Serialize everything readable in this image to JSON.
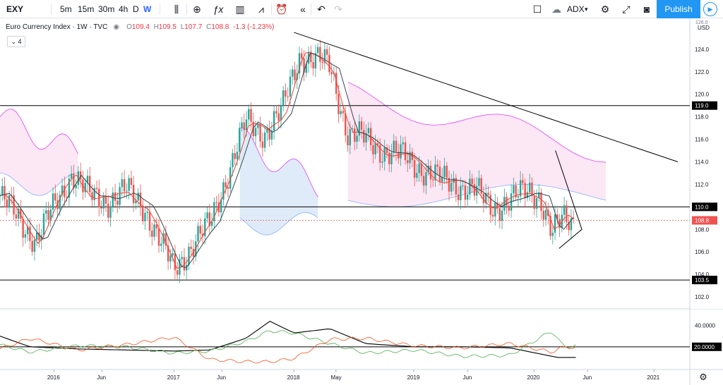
{
  "toolbar": {
    "symbol": "EXY",
    "intervals": [
      "5m",
      "15m",
      "30m",
      "4h",
      "D",
      "W"
    ],
    "active_interval": "W",
    "compare_label": "ADX",
    "publish_label": "Publish"
  },
  "legend": {
    "title": "Euro Currency Index · 1W · TVC",
    "open_label": "O",
    "open": "109.4",
    "high_label": "H",
    "high": "109.5",
    "low_label": "L",
    "low": "107.7",
    "close_label": "C",
    "close": "108.8",
    "change": "-1.3 (-1.23%)",
    "indicators_count": "4"
  },
  "price_axis": {
    "currency": "USD",
    "top_partial": "126.0",
    "ticks": [
      "124.0",
      "122.0",
      "120.0",
      "118.0",
      "116.0",
      "114.0",
      "112.0",
      "110.0",
      "108.0",
      "106.0",
      "104.0",
      "102.0"
    ],
    "bottom_partial": "104.0",
    "badges": [
      {
        "label": "119.0",
        "kind": "level"
      },
      {
        "label": "110.0",
        "kind": "level"
      },
      {
        "label": "108.8",
        "kind": "current"
      },
      {
        "label": "103.5",
        "kind": "level"
      }
    ]
  },
  "adx_axis": {
    "ticks": [
      "40.0000"
    ],
    "badge": "20.0000"
  },
  "time_axis": {
    "labels": [
      "2016",
      "Jun",
      "2017",
      "Jun",
      "2018",
      "May",
      "2019",
      "Jun",
      "2020",
      "Jun",
      "2021"
    ]
  },
  "colors": {
    "up": "#26a69a",
    "down": "#ef5350",
    "bullish_cloud": "#fce4f3",
    "bearish_cloud": "#dce9f7",
    "span_a": "#e040fb",
    "span_b": "#82b1ff",
    "tenkan": "#f44336",
    "kijun": "#37474f",
    "adx": "#000000",
    "plus_di": "#4caf50",
    "minus_di": "#f4511e",
    "accent": "#2196f3"
  },
  "chart_data": {
    "type": "candlestick",
    "title": "Euro Currency Index · 1W · TVC",
    "ylim": [
      101.0,
      126.5
    ],
    "horizontal_levels": [
      119.0,
      110.0,
      103.5
    ],
    "current_price": 108.8,
    "series": [
      {
        "name": "Price (weekly closes)",
        "t": [
          2015.55,
          2015.7,
          2015.85,
          2016.0,
          2016.15,
          2016.3,
          2016.45,
          2016.6,
          2016.75,
          2016.9,
          2017.0,
          2017.15,
          2017.3,
          2017.45,
          2017.6,
          2017.75,
          2017.9,
          2018.05,
          2018.2,
          2018.3,
          2018.45,
          2018.6,
          2018.75,
          2018.9,
          2019.05,
          2019.2,
          2019.35,
          2019.5,
          2019.65,
          2019.8,
          2019.95,
          2020.05,
          2020.15,
          2020.25,
          2020.32
        ],
        "values": [
          111.0,
          109.0,
          107.0,
          110.0,
          113.0,
          111.0,
          110.5,
          111.5,
          110.0,
          106.5,
          104.5,
          106.5,
          108.5,
          113.0,
          117.5,
          116.5,
          118.5,
          123.5,
          123.0,
          122.5,
          116.5,
          116.0,
          115.0,
          114.5,
          113.5,
          112.5,
          112.0,
          111.5,
          110.0,
          110.5,
          111.5,
          111.0,
          107.5,
          109.0,
          108.8
        ]
      }
    ],
    "ichimoku_cloud": [
      {
        "t0": 2015.55,
        "t1": 2016.2,
        "span_a": 118.0,
        "span_b": 112.0,
        "kind": "bullish"
      },
      {
        "t0": 2017.55,
        "t1": 2018.2,
        "span_a": 116.0,
        "span_b": 108.5,
        "kind": "bearish"
      },
      {
        "t0": 2018.45,
        "t1": 2020.6,
        "span_a": 120.0,
        "span_b": 111.0,
        "kind": "bullish"
      }
    ],
    "trendline": {
      "from": {
        "t": 2018.0,
        "v": 125.5
      },
      "to": {
        "t": 2021.2,
        "v": 114.0
      }
    },
    "triangle": {
      "points": [
        {
          "t": 2020.18,
          "v": 115.0
        },
        {
          "t": 2020.4,
          "v": 108.0
        },
        {
          "t": 2020.21,
          "v": 106.3
        }
      ]
    },
    "adx_panel": {
      "ylim": [
        0,
        55
      ],
      "reference_level": 20.0,
      "series": [
        {
          "name": "ADX",
          "t": [
            2015.55,
            2015.8,
            2016.2,
            2016.6,
            2017.0,
            2017.3,
            2017.6,
            2017.8,
            2018.0,
            2018.3,
            2018.6,
            2019.0,
            2019.4,
            2019.8,
            2020.2,
            2020.35
          ],
          "values": [
            30,
            20,
            18,
            17,
            16,
            17,
            28,
            44,
            33,
            37,
            23,
            20,
            20,
            19,
            10,
            10
          ]
        },
        {
          "name": "+DI",
          "t": [
            2015.55,
            2015.8,
            2016.2,
            2016.6,
            2017.0,
            2017.3,
            2017.6,
            2017.8,
            2018.0,
            2018.3,
            2018.6,
            2019.0,
            2019.4,
            2019.8,
            2020.15,
            2020.25,
            2020.35
          ],
          "values": [
            22,
            15,
            21,
            20,
            14,
            16,
            25,
            35,
            33,
            23,
            14,
            17,
            11,
            12,
            35,
            20,
            21
          ]
        },
        {
          "name": "-DI",
          "t": [
            2015.55,
            2015.8,
            2016.2,
            2016.6,
            2017.0,
            2017.3,
            2017.6,
            2017.8,
            2018.0,
            2018.3,
            2018.6,
            2019.0,
            2019.4,
            2019.8,
            2020.15,
            2020.25,
            2020.35
          ],
          "values": [
            18,
            28,
            17,
            22,
            29,
            8,
            6,
            6,
            9,
            27,
            28,
            21,
            19,
            23,
            15,
            20,
            19
          ]
        }
      ]
    }
  }
}
